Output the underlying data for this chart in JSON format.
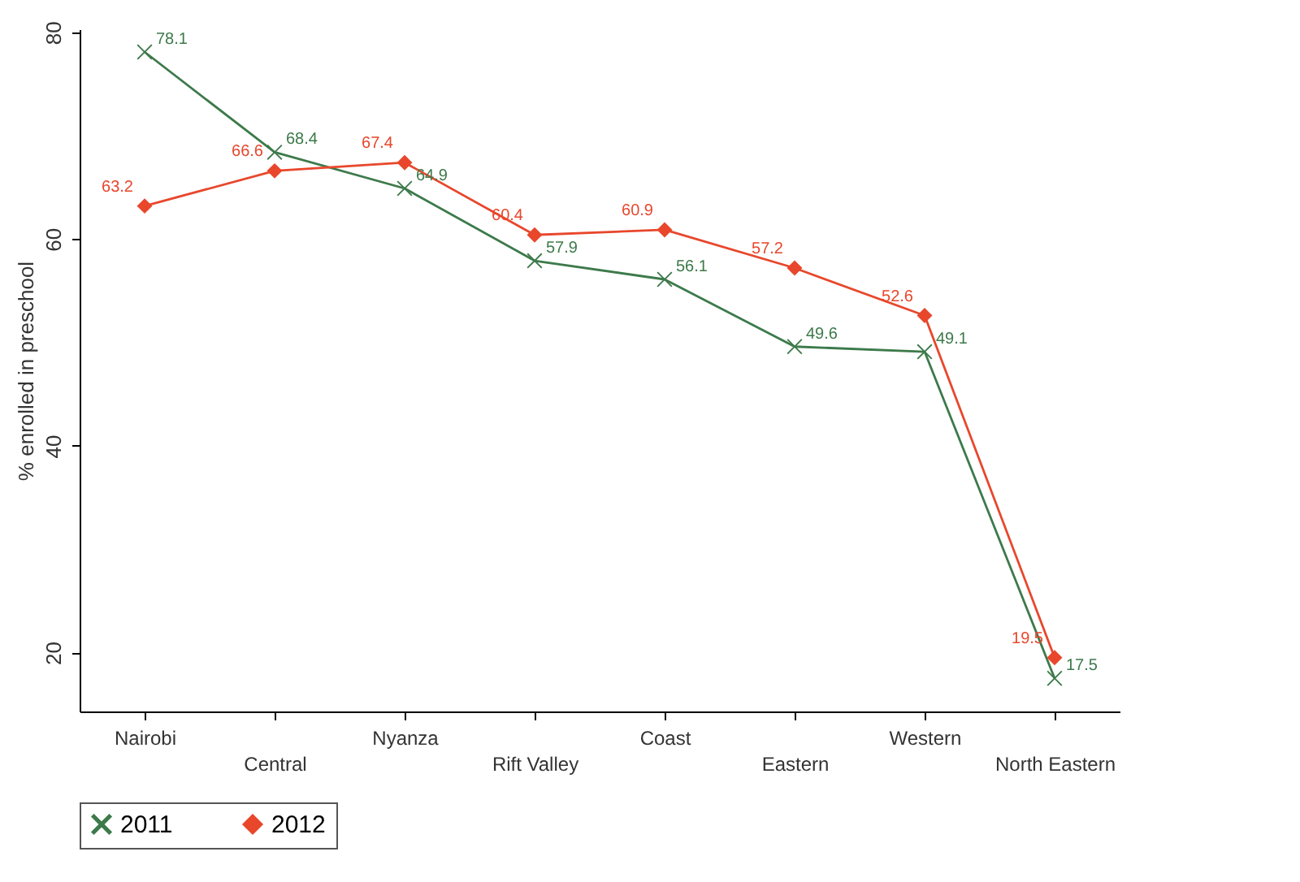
{
  "chart_data": {
    "type": "line",
    "ylabel": "% enrolled in preschool",
    "categories": [
      "Nairobi",
      "Central",
      "Nyanza",
      "Rift Valley",
      "Coast",
      "Eastern",
      "Western",
      "North Eastern"
    ],
    "series": [
      {
        "name": "2011",
        "color": "#3d7a4b",
        "marker": "cross",
        "values": [
          78.1,
          68.4,
          64.9,
          57.9,
          56.1,
          49.6,
          49.1,
          17.5
        ]
      },
      {
        "name": "2012",
        "color": "#e8472c",
        "marker": "diamond",
        "values": [
          63.2,
          66.6,
          67.4,
          60.4,
          60.9,
          57.2,
          52.6,
          19.5
        ]
      }
    ],
    "ylim": [
      14.3,
      80.3
    ],
    "yticks": [
      20,
      40,
      60,
      80
    ],
    "data_labels": true,
    "grid": false,
    "legend": "bottom"
  }
}
